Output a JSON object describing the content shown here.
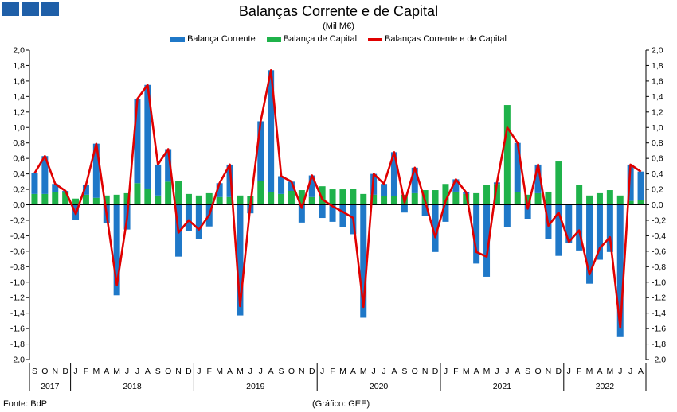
{
  "header": {
    "title": "Balanças Corrente e de Capital",
    "subtitle": "(Mil M€)"
  },
  "footer": {
    "source": "Fonte: BdP",
    "credit": "(Gráfico: GEE)"
  },
  "chart_data": {
    "type": "bar",
    "ylim": [
      -2.0,
      2.0
    ],
    "ytick_step": 0.2,
    "grid": false,
    "legend_position": "top-center",
    "colors": {
      "current": "#1f78c8",
      "capital": "#1fb24a",
      "line": "#e00000",
      "logo": "#1f5fa8"
    },
    "months": [
      "S",
      "O",
      "N",
      "D",
      "J",
      "F",
      "M",
      "A",
      "M",
      "J",
      "J",
      "A",
      "S",
      "O",
      "N",
      "D",
      "J",
      "F",
      "M",
      "A",
      "M",
      "J",
      "J",
      "A",
      "S",
      "O",
      "N",
      "D",
      "J",
      "F",
      "M",
      "A",
      "M",
      "J",
      "J",
      "A",
      "S",
      "O",
      "N",
      "D",
      "J",
      "F",
      "M",
      "A",
      "M",
      "J",
      "J",
      "A",
      "S",
      "O",
      "N",
      "D",
      "J",
      "F",
      "M",
      "A",
      "M",
      "J",
      "J",
      "A"
    ],
    "years": [
      {
        "label": "2017",
        "count": 4
      },
      {
        "label": "2018",
        "count": 12
      },
      {
        "label": "2019",
        "count": 12
      },
      {
        "label": "2020",
        "count": 12
      },
      {
        "label": "2021",
        "count": 12
      },
      {
        "label": "2022",
        "count": 8
      }
    ],
    "series": [
      {
        "name": "Balança Corrente",
        "values": [
          0.27,
          0.49,
          0.11,
          0.01,
          -0.2,
          0.13,
          0.7,
          -0.24,
          -1.17,
          -0.32,
          1.09,
          1.34,
          0.4,
          0.42,
          -0.67,
          -0.34,
          -0.44,
          -0.28,
          0.18,
          0.42,
          -1.43,
          -0.11,
          0.77,
          1.58,
          0.23,
          0.12,
          -0.23,
          0.28,
          -0.17,
          -0.22,
          -0.29,
          -0.38,
          -1.46,
          0.27,
          0.16,
          0.57,
          -0.1,
          0.33,
          -0.14,
          -0.61,
          -0.22,
          0.16,
          0.02,
          -0.76,
          -0.93,
          0.02,
          -0.29,
          0.64,
          -0.18,
          0.37,
          -0.44,
          -0.66,
          -0.49,
          -0.59,
          -1.02,
          -0.71,
          -0.61,
          -1.71,
          0.47,
          0.37
        ]
      },
      {
        "name": "Balança de Capital",
        "values": [
          0.14,
          0.14,
          0.16,
          0.17,
          0.08,
          0.13,
          0.09,
          0.12,
          0.13,
          0.15,
          0.28,
          0.21,
          0.12,
          0.3,
          0.31,
          0.14,
          0.12,
          0.15,
          0.1,
          0.1,
          0.12,
          0.11,
          0.31,
          0.16,
          0.14,
          0.18,
          0.19,
          0.1,
          0.24,
          0.2,
          0.2,
          0.21,
          0.14,
          0.13,
          0.11,
          0.11,
          0.13,
          0.15,
          0.19,
          0.19,
          0.27,
          0.17,
          0.14,
          0.15,
          0.26,
          0.27,
          1.29,
          0.16,
          0.13,
          0.15,
          0.17,
          0.56,
          0.01,
          0.26,
          0.12,
          0.15,
          0.19,
          0.12,
          0.05,
          0.06
        ]
      },
      {
        "name": "Balanças Corrente e de Capital",
        "values": [
          0.41,
          0.63,
          0.27,
          0.18,
          -0.12,
          0.26,
          0.79,
          -0.12,
          -1.04,
          -0.17,
          1.37,
          1.55,
          0.52,
          0.72,
          -0.36,
          -0.2,
          -0.32,
          -0.13,
          0.28,
          0.52,
          -1.31,
          0.0,
          1.08,
          1.74,
          0.37,
          0.3,
          -0.04,
          0.38,
          0.07,
          -0.02,
          -0.09,
          -0.17,
          -1.32,
          0.4,
          0.27,
          0.68,
          0.03,
          0.48,
          0.05,
          -0.42,
          0.05,
          0.33,
          0.16,
          -0.61,
          -0.67,
          0.29,
          1.0,
          0.8,
          -0.05,
          0.52,
          -0.27,
          -0.1,
          -0.48,
          -0.33,
          -0.9,
          -0.56,
          -0.42,
          -1.59,
          0.52,
          0.43
        ]
      }
    ]
  }
}
